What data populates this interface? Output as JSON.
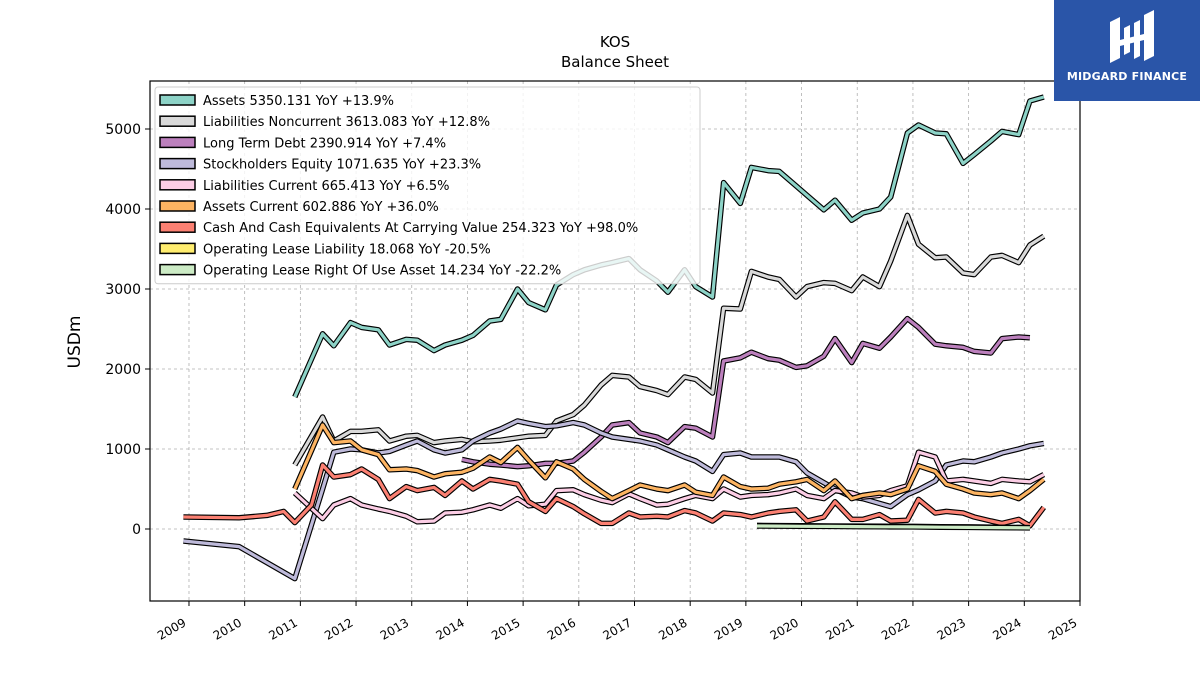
{
  "chart_data": {
    "type": "line",
    "title": "KOS",
    "subtitle": "Balance  Sheet",
    "ylabel": "USDm",
    "xlim": [
      2008.3,
      2025.0
    ],
    "ylim": [
      -900,
      5600
    ],
    "yticks": [
      0,
      1000,
      2000,
      3000,
      4000,
      5000
    ],
    "xticks": [
      2009,
      2010,
      2011,
      2012,
      2013,
      2014,
      2015,
      2016,
      2017,
      2018,
      2019,
      2020,
      2021,
      2022,
      2023,
      2024,
      2025
    ],
    "grid": true,
    "legend_position": "top-left",
    "series": [
      {
        "name": "Assets",
        "legend": "Assets  5350.131 YoY +13.9%",
        "color": "#8dd3c7",
        "x": [
          2010.9,
          2011.4,
          2011.6,
          2011.9,
          2012.1,
          2012.4,
          2012.6,
          2012.9,
          2013.1,
          2013.4,
          2013.6,
          2013.9,
          2014.1,
          2014.4,
          2014.6,
          2014.9,
          2015.1,
          2015.4,
          2015.6,
          2015.9,
          2016.1,
          2016.4,
          2016.6,
          2016.9,
          2017.1,
          2017.4,
          2017.6,
          2017.9,
          2018.1,
          2018.4,
          2018.6,
          2018.9,
          2019.1,
          2019.4,
          2019.6,
          2019.9,
          2020.1,
          2020.4,
          2020.6,
          2020.9,
          2021.1,
          2021.4,
          2021.6,
          2021.9,
          2022.1,
          2022.4,
          2022.6,
          2022.9,
          2023.1,
          2023.4,
          2023.6,
          2023.9,
          2024.1,
          2024.35
        ],
        "y": [
          1650,
          2440,
          2290,
          2580,
          2520,
          2490,
          2300,
          2370,
          2360,
          2230,
          2300,
          2360,
          2420,
          2600,
          2620,
          3000,
          2830,
          2740,
          3050,
          3180,
          3240,
          3300,
          3330,
          3380,
          3240,
          3100,
          2960,
          3240,
          3030,
          2900,
          4330,
          4070,
          4520,
          4480,
          4470,
          4290,
          4170,
          3990,
          4110,
          3860,
          3950,
          4000,
          4150,
          4950,
          5050,
          4950,
          4940,
          4570,
          4680,
          4850,
          4970,
          4930,
          5350,
          5400
        ]
      },
      {
        "name": "Liabilities Noncurrent",
        "legend": "Liabilities Noncurrent  3613.083 YoY +12.8%",
        "color": "#d9d9d9",
        "x": [
          2010.9,
          2011.4,
          2011.6,
          2011.9,
          2012.1,
          2012.4,
          2012.6,
          2012.9,
          2013.1,
          2013.4,
          2013.6,
          2013.9,
          2014.1,
          2014.4,
          2014.6,
          2014.9,
          2015.1,
          2015.4,
          2015.6,
          2015.9,
          2016.1,
          2016.4,
          2016.6,
          2016.9,
          2017.1,
          2017.4,
          2017.6,
          2017.9,
          2018.1,
          2018.4,
          2018.6,
          2018.9,
          2019.1,
          2019.4,
          2019.6,
          2019.9,
          2020.1,
          2020.4,
          2020.6,
          2020.9,
          2021.1,
          2021.4,
          2021.6,
          2021.9,
          2022.1,
          2022.4,
          2022.6,
          2022.9,
          2023.1,
          2023.4,
          2023.6,
          2023.9,
          2024.1,
          2024.35
        ],
        "y": [
          800,
          1400,
          1100,
          1220,
          1220,
          1240,
          1100,
          1160,
          1170,
          1080,
          1100,
          1120,
          1090,
          1100,
          1110,
          1140,
          1160,
          1170,
          1350,
          1430,
          1550,
          1800,
          1920,
          1900,
          1780,
          1730,
          1680,
          1900,
          1870,
          1700,
          2760,
          2750,
          3220,
          3150,
          3120,
          2900,
          3030,
          3080,
          3070,
          2980,
          3150,
          3030,
          3350,
          3920,
          3560,
          3390,
          3400,
          3200,
          3180,
          3400,
          3420,
          3330,
          3550,
          3660
        ]
      },
      {
        "name": "Long Term Debt",
        "legend": "Long Term Debt  2390.914 YoY +7.4%",
        "color": "#bc80bd",
        "x": [
          2013.9,
          2014.1,
          2014.4,
          2014.6,
          2014.9,
          2015.1,
          2015.4,
          2015.6,
          2015.9,
          2016.1,
          2016.4,
          2016.6,
          2016.9,
          2017.1,
          2017.4,
          2017.6,
          2017.9,
          2018.1,
          2018.4,
          2018.6,
          2018.9,
          2019.1,
          2019.4,
          2019.6,
          2019.9,
          2020.1,
          2020.4,
          2020.6,
          2020.9,
          2021.1,
          2021.4,
          2021.6,
          2021.9,
          2022.1,
          2022.4,
          2022.6,
          2022.9,
          2023.1,
          2023.4,
          2023.6,
          2023.9,
          2024.1
        ],
        "y": [
          870,
          840,
          810,
          800,
          780,
          790,
          820,
          820,
          850,
          960,
          1150,
          1300,
          1330,
          1200,
          1150,
          1080,
          1280,
          1260,
          1150,
          2100,
          2140,
          2210,
          2130,
          2110,
          2020,
          2040,
          2160,
          2380,
          2080,
          2320,
          2260,
          2400,
          2630,
          2520,
          2310,
          2290,
          2270,
          2220,
          2200,
          2380,
          2400,
          2390
        ]
      },
      {
        "name": "Stockholders Equity",
        "legend": "Stockholders Equity  1071.635 YoY +23.3%",
        "color": "#bebada",
        "x": [
          2008.9,
          2009.9,
          2010.9,
          2011.4,
          2011.6,
          2011.9,
          2012.1,
          2012.4,
          2012.6,
          2012.9,
          2013.1,
          2013.4,
          2013.6,
          2013.9,
          2014.1,
          2014.4,
          2014.6,
          2014.9,
          2015.1,
          2015.4,
          2015.6,
          2015.9,
          2016.1,
          2016.4,
          2016.6,
          2016.9,
          2017.1,
          2017.4,
          2017.6,
          2017.9,
          2018.1,
          2018.4,
          2018.6,
          2018.9,
          2019.1,
          2019.4,
          2019.6,
          2019.9,
          2020.1,
          2020.4,
          2020.6,
          2020.9,
          2021.1,
          2021.4,
          2021.6,
          2021.9,
          2022.1,
          2022.4,
          2022.6,
          2022.9,
          2023.1,
          2023.4,
          2023.6,
          2023.9,
          2024.1,
          2024.35
        ],
        "y": [
          -150,
          -220,
          -620,
          500,
          960,
          1000,
          990,
          950,
          970,
          1050,
          1100,
          990,
          950,
          990,
          1100,
          1200,
          1250,
          1350,
          1320,
          1280,
          1290,
          1330,
          1300,
          1200,
          1150,
          1120,
          1100,
          1050,
          990,
          900,
          850,
          720,
          930,
          950,
          900,
          900,
          900,
          840,
          700,
          580,
          500,
          400,
          380,
          320,
          280,
          430,
          490,
          600,
          800,
          850,
          840,
          900,
          950,
          1000,
          1040,
          1070
        ]
      },
      {
        "name": "Liabilities Current",
        "legend": "Liabilities Current  665.413 YoY +6.5%",
        "color": "#fccde5",
        "x": [
          2010.9,
          2011.4,
          2011.6,
          2011.9,
          2012.1,
          2012.4,
          2012.6,
          2012.9,
          2013.1,
          2013.4,
          2013.6,
          2013.9,
          2014.1,
          2014.4,
          2014.6,
          2014.9,
          2015.1,
          2015.4,
          2015.6,
          2015.9,
          2016.1,
          2016.4,
          2016.6,
          2016.9,
          2017.1,
          2017.4,
          2017.6,
          2017.9,
          2018.1,
          2018.4,
          2018.6,
          2018.9,
          2019.1,
          2019.4,
          2019.6,
          2019.9,
          2020.1,
          2020.4,
          2020.6,
          2020.9,
          2021.1,
          2021.4,
          2021.6,
          2021.9,
          2022.1,
          2022.4,
          2022.6,
          2022.9,
          2023.1,
          2023.4,
          2023.6,
          2023.9,
          2024.1,
          2024.35
        ],
        "y": [
          450,
          130,
          300,
          380,
          300,
          250,
          220,
          160,
          90,
          100,
          200,
          210,
          240,
          300,
          260,
          380,
          290,
          310,
          480,
          490,
          430,
          360,
          330,
          440,
          380,
          300,
          310,
          380,
          420,
          380,
          500,
          400,
          420,
          430,
          450,
          500,
          420,
          380,
          480,
          450,
          400,
          420,
          480,
          540,
          960,
          900,
          600,
          620,
          600,
          570,
          620,
          600,
          590,
          680
        ]
      },
      {
        "name": "Assets Current",
        "legend": "Assets Current  602.886 YoY +36.0%",
        "color": "#fdb462",
        "x": [
          2010.9,
          2011.4,
          2011.6,
          2011.9,
          2012.1,
          2012.4,
          2012.6,
          2012.9,
          2013.1,
          2013.4,
          2013.6,
          2013.9,
          2014.1,
          2014.4,
          2014.6,
          2014.9,
          2015.1,
          2015.4,
          2015.6,
          2015.9,
          2016.1,
          2016.4,
          2016.6,
          2016.9,
          2017.1,
          2017.4,
          2017.6,
          2017.9,
          2018.1,
          2018.4,
          2018.6,
          2018.9,
          2019.1,
          2019.4,
          2019.6,
          2019.9,
          2020.1,
          2020.4,
          2020.6,
          2020.9,
          2021.1,
          2021.4,
          2021.6,
          2021.9,
          2022.1,
          2022.4,
          2022.6,
          2022.9,
          2023.1,
          2023.4,
          2023.6,
          2023.9,
          2024.1,
          2024.35
        ],
        "y": [
          500,
          1300,
          1080,
          1100,
          990,
          930,
          740,
          750,
          730,
          650,
          690,
          710,
          760,
          900,
          830,
          1020,
          860,
          640,
          840,
          750,
          620,
          470,
          380,
          480,
          550,
          500,
          480,
          550,
          460,
          420,
          650,
          530,
          500,
          510,
          560,
          590,
          620,
          480,
          600,
          380,
          420,
          450,
          430,
          500,
          790,
          720,
          560,
          500,
          450,
          430,
          450,
          380,
          480,
          620
        ]
      },
      {
        "name": "Cash And Cash Equivalents At Carrying Value",
        "legend": "Cash And Cash Equivalents At Carrying Value  254.323 YoY +98.0%",
        "color": "#fb8072",
        "x": [
          2008.9,
          2009.9,
          2010.4,
          2010.7,
          2010.9,
          2011.2,
          2011.4,
          2011.6,
          2011.9,
          2012.1,
          2012.4,
          2012.6,
          2012.9,
          2013.1,
          2013.4,
          2013.6,
          2013.9,
          2014.1,
          2014.4,
          2014.6,
          2014.9,
          2015.1,
          2015.4,
          2015.6,
          2015.9,
          2016.1,
          2016.4,
          2016.6,
          2016.9,
          2017.1,
          2017.4,
          2017.6,
          2017.9,
          2018.1,
          2018.4,
          2018.6,
          2018.9,
          2019.1,
          2019.4,
          2019.6,
          2019.9,
          2020.1,
          2020.4,
          2020.6,
          2020.9,
          2021.1,
          2021.4,
          2021.6,
          2021.9,
          2022.1,
          2022.4,
          2022.6,
          2022.9,
          2023.1,
          2023.4,
          2023.6,
          2023.9,
          2024.1,
          2024.35
        ],
        "y": [
          150,
          140,
          170,
          220,
          80,
          300,
          800,
          650,
          680,
          750,
          620,
          380,
          530,
          480,
          520,
          420,
          600,
          500,
          620,
          600,
          560,
          340,
          220,
          380,
          280,
          190,
          70,
          70,
          200,
          150,
          160,
          150,
          230,
          200,
          100,
          200,
          180,
          150,
          200,
          220,
          240,
          100,
          150,
          340,
          120,
          120,
          180,
          100,
          110,
          370,
          200,
          220,
          200,
          150,
          100,
          70,
          120,
          40,
          270
        ]
      },
      {
        "name": "Operating Lease Liability",
        "legend": "Operating Lease Liability  18.068 YoY -20.5%",
        "color": "#ffed6f",
        "x": [
          2019.2,
          2019.6,
          2020.0,
          2020.5,
          2021.0,
          2021.5,
          2022.0,
          2022.5,
          2023.0,
          2023.5,
          2024.1
        ],
        "y": [
          45,
          42,
          40,
          38,
          36,
          34,
          32,
          29,
          26,
          22,
          18
        ]
      },
      {
        "name": "Operating Lease Right Of Use Asset",
        "legend": "Operating Lease Right Of Use Asset  14.234 YoY -22.2%",
        "color": "#ccebc5",
        "x": [
          2019.2,
          2019.6,
          2020.0,
          2020.5,
          2021.0,
          2021.5,
          2022.0,
          2022.5,
          2023.0,
          2023.5,
          2024.1
        ],
        "y": [
          38,
          36,
          34,
          32,
          30,
          28,
          26,
          23,
          20,
          17,
          14
        ]
      }
    ]
  },
  "logo": {
    "text": "MIDGARD FINANCE"
  }
}
